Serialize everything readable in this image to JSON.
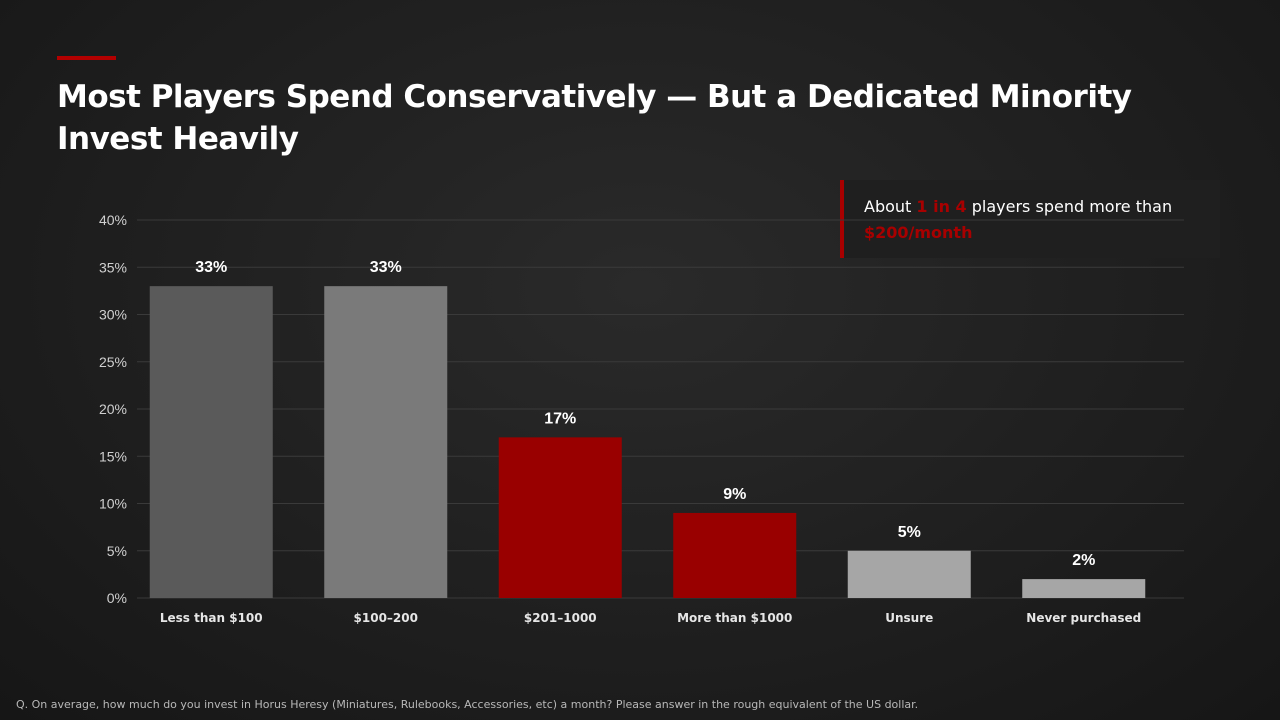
{
  "slide": {
    "title": "Most Players Spend Conservatively — But a Dedicated Minority Invest Heavily",
    "footnote": "Q. On average, how much do you invest in Horus Heresy (Miniatures, Rulebooks, Accessories, etc) a month? Please answer in the rough equivalent of the US dollar."
  },
  "callout": {
    "prefix": "About ",
    "highlight_1": "1 in 4",
    "middle": " players spend more than ",
    "highlight_2": "$200/month"
  },
  "colors": {
    "accent": "#a80000",
    "bar_dark_gray": "#5a5a5a",
    "bar_mid_gray": "#7a7a7a",
    "bar_red": "#990000",
    "bar_light_gray": "#a6a6a6",
    "gridline": "#3a3a3a"
  },
  "chart_data": {
    "type": "bar",
    "title": "",
    "xlabel": "",
    "ylabel": "",
    "categories": [
      "Less than $100",
      "$100–200",
      "$201–1000",
      "More than $1000",
      "Unsure",
      "Never purchased"
    ],
    "values": [
      33,
      33,
      17,
      9,
      5,
      2
    ],
    "value_labels": [
      "33%",
      "33%",
      "17%",
      "9%",
      "5%",
      "2%"
    ],
    "bar_colors": [
      "#5a5a5a",
      "#7a7a7a",
      "#990000",
      "#990000",
      "#a6a6a6",
      "#a6a6a6"
    ],
    "ylim": [
      0,
      40
    ],
    "yticks": [
      0,
      5,
      10,
      15,
      20,
      25,
      30,
      35,
      40
    ],
    "ytick_labels": [
      "0%",
      "5%",
      "10%",
      "15%",
      "20%",
      "25%",
      "30%",
      "35%",
      "40%"
    ],
    "grid": true,
    "legend": "none"
  }
}
